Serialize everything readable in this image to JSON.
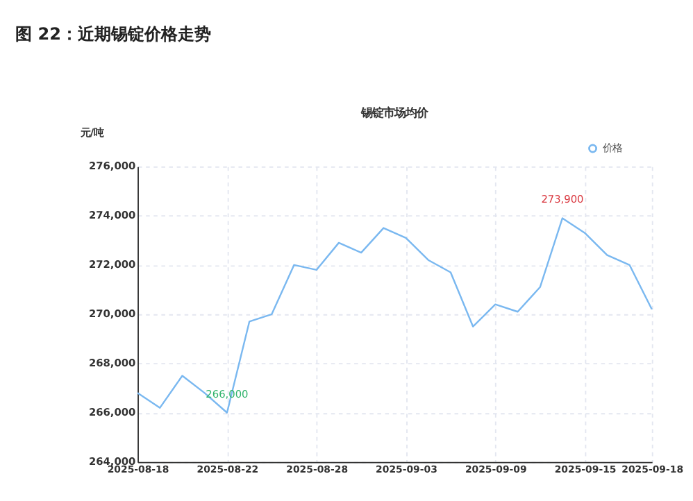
{
  "chart_data": {
    "type": "line",
    "title": "图 22：近期锡锭价格走势",
    "subtitle": "锡锭市场均价",
    "ylabel": "元/吨",
    "categories": [
      "2025-08-18",
      null,
      null,
      null,
      "2025-08-22",
      null,
      null,
      null,
      "2025-08-28",
      null,
      null,
      null,
      "2025-09-03",
      null,
      null,
      null,
      "2025-09-09",
      null,
      null,
      null,
      "2025-09-15",
      null,
      null,
      "2025-09-18"
    ],
    "series": [
      {
        "name": "价格",
        "color": "#7ab8f0",
        "values": [
          266800,
          266200,
          267500,
          266800,
          266000,
          269700,
          270000,
          272000,
          271800,
          272900,
          272500,
          273500,
          273100,
          272200,
          271700,
          269500,
          270400,
          270100,
          271100,
          273900,
          273300,
          272400,
          272000,
          270200
        ]
      }
    ],
    "annotations": [
      {
        "text": "266,000",
        "x": "2025-08-22",
        "y": 266000
      },
      {
        "text": "273,900",
        "y": 273900
      }
    ],
    "ylim": [
      264000,
      276000
    ],
    "yticks": [
      {
        "value": 264000,
        "label": "264,000"
      },
      {
        "value": 266000,
        "label": "266,000"
      },
      {
        "value": 268000,
        "label": "268,000"
      },
      {
        "value": 270000,
        "label": "270,000"
      },
      {
        "value": 272000,
        "label": "272,000"
      },
      {
        "value": 274000,
        "label": "274,000"
      },
      {
        "value": 276000,
        "label": "276,000"
      }
    ],
    "grid": true,
    "legend": "top right",
    "marker": "none",
    "line_style": "solid"
  }
}
